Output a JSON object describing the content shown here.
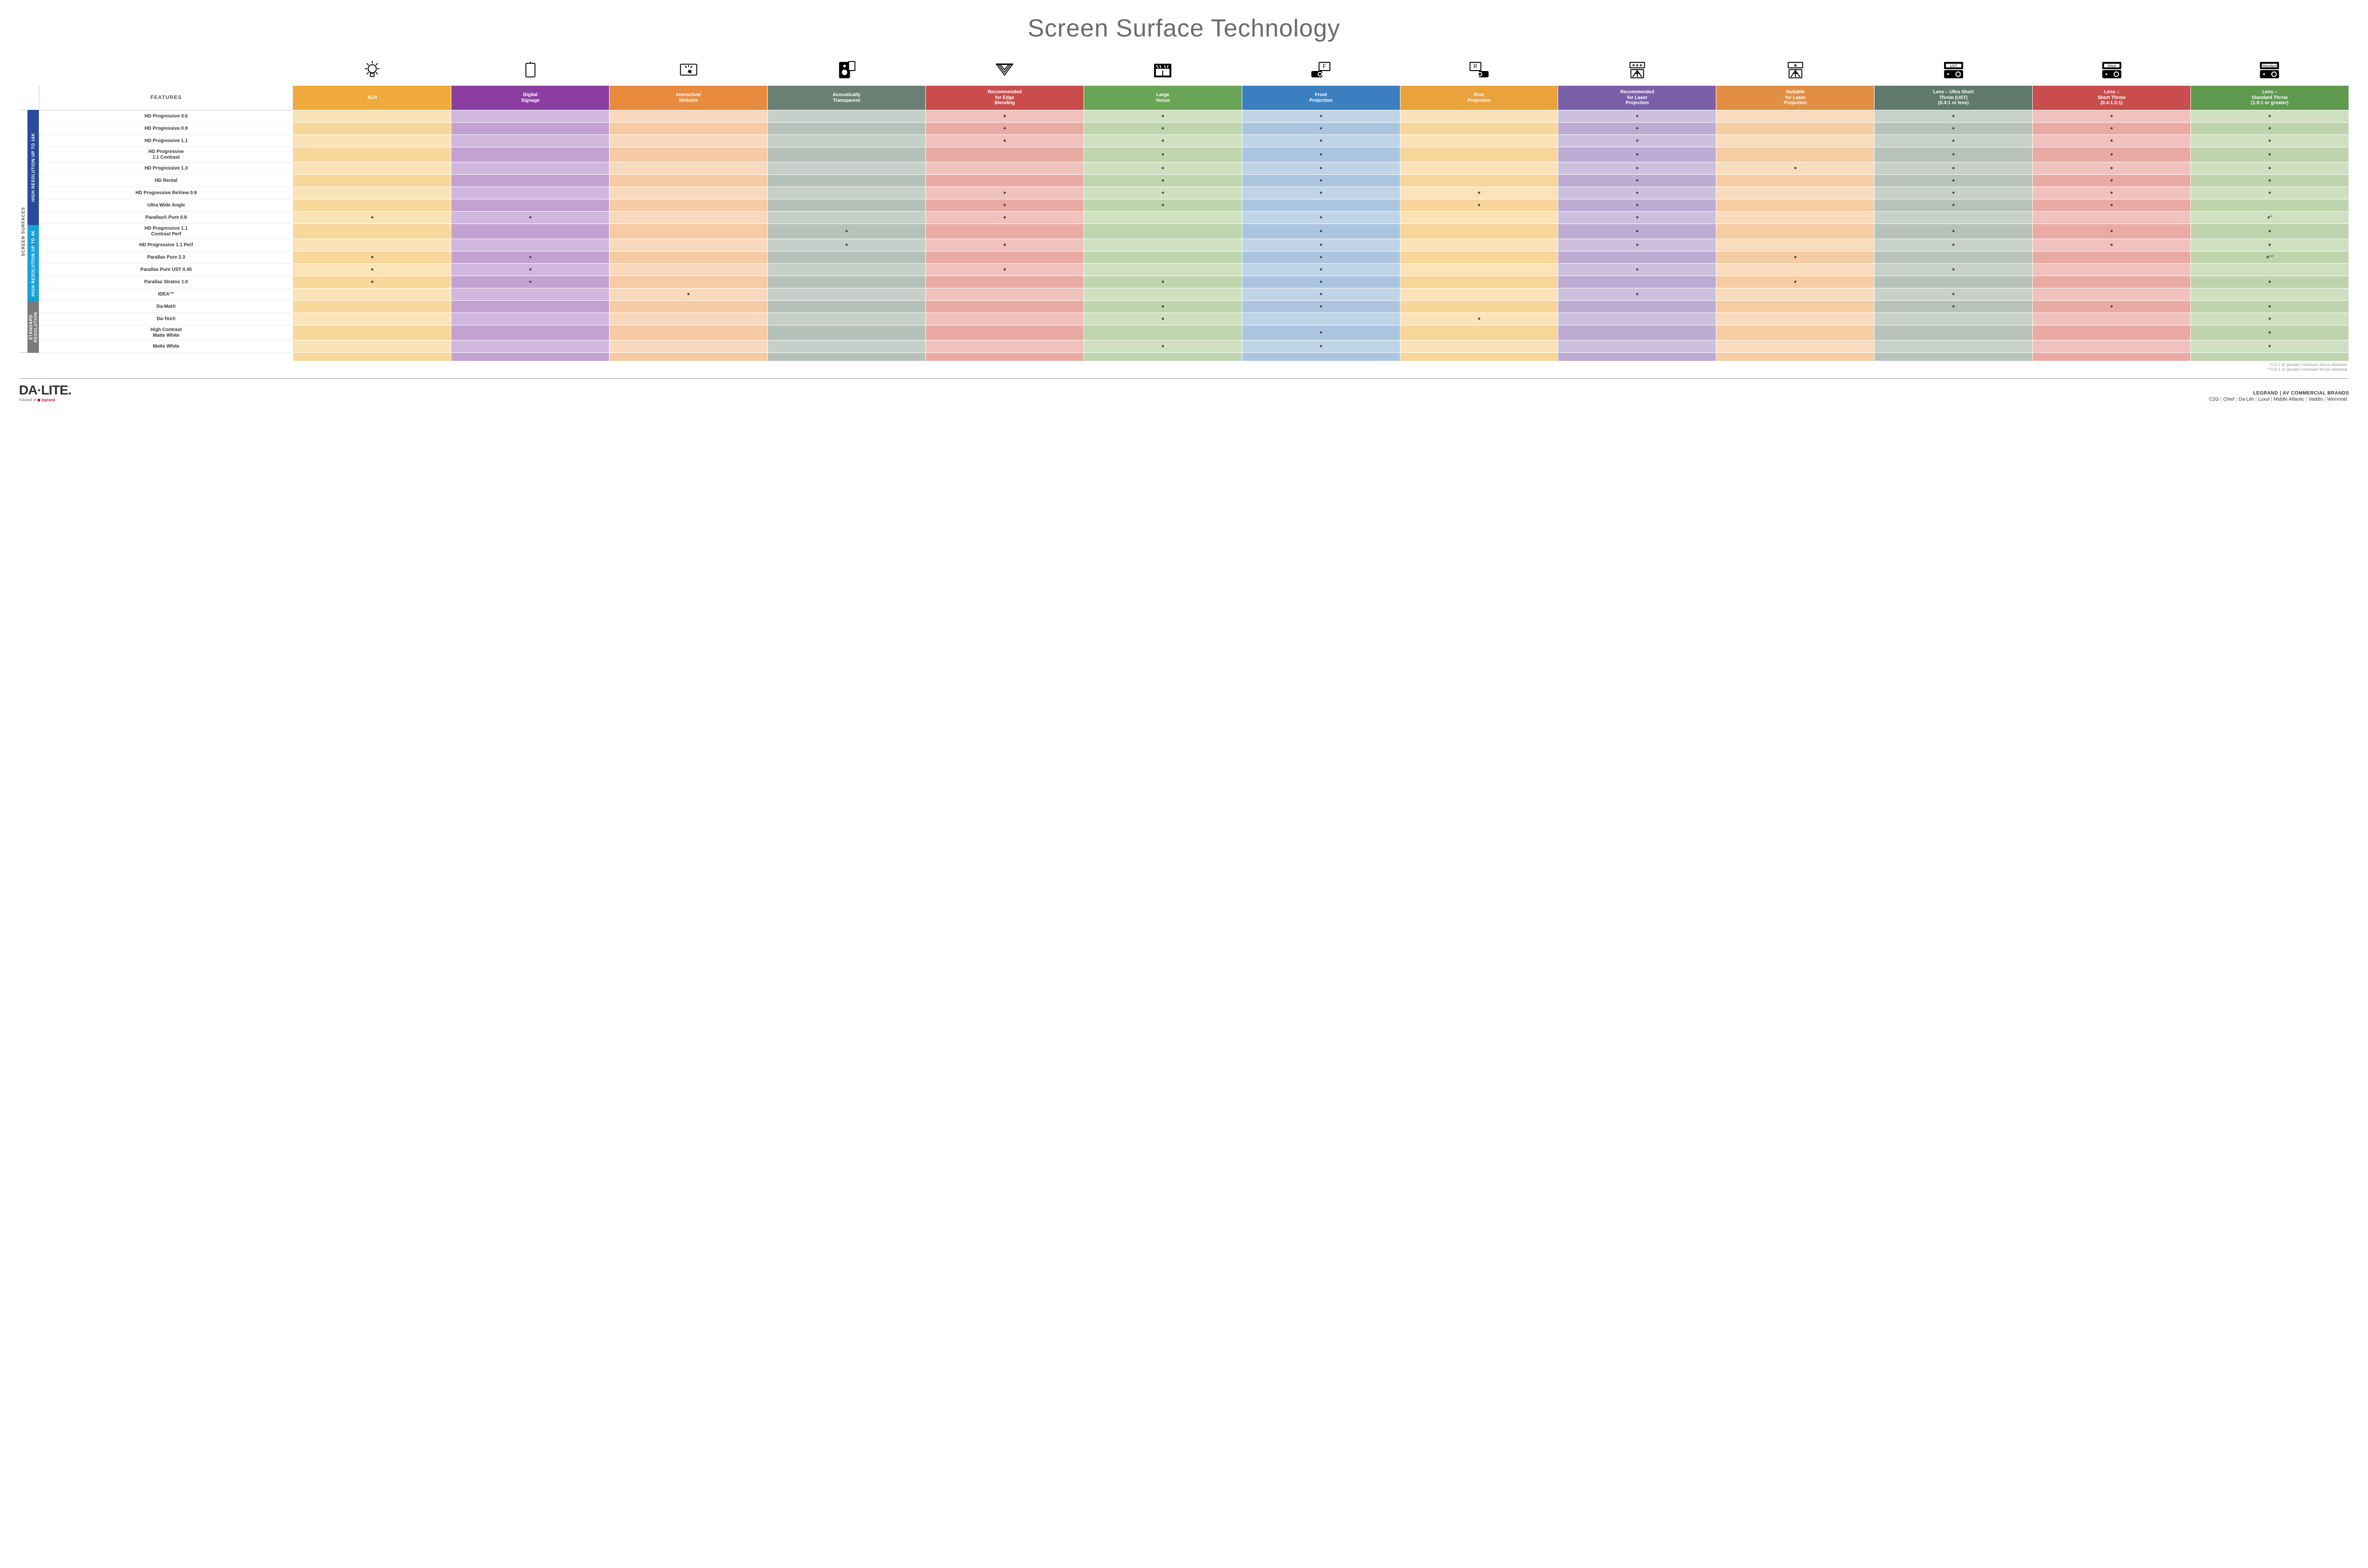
{
  "title": "Screen Surface Technology",
  "colors": {
    "group_16k": "#2a4a9b",
    "group_4k": "#1aa0d8",
    "group_std": "#7a7a7a",
    "dot": "#4a4a4a"
  },
  "columns": [
    {
      "key": "feat",
      "label": "FEATURES",
      "bg": "#ffffff",
      "icon": null
    },
    {
      "key": "alr",
      "label": "ALR",
      "bg": "#f0a93c",
      "icon": "bulb"
    },
    {
      "key": "signage",
      "label": "Digital\nSignage",
      "bg": "#8a3fa0",
      "icon": "sign"
    },
    {
      "key": "interactive",
      "label": "Interactive/\nWritable",
      "bg": "#e98b3e",
      "icon": "touch"
    },
    {
      "key": "acoustic",
      "label": "Acoustically\nTransparent",
      "bg": "#6b8075",
      "icon": "speaker"
    },
    {
      "key": "edge",
      "label": "Recommended\nfor Edge\nBlending",
      "bg": "#c94d4d",
      "icon": "blend"
    },
    {
      "key": "venue",
      "label": "Large\nVenue",
      "bg": "#6aa557",
      "icon": "venue"
    },
    {
      "key": "front",
      "label": "Front\nProjection",
      "bg": "#3b7fbf",
      "icon": "front"
    },
    {
      "key": "rear",
      "label": "Rear\nProjection",
      "bg": "#e9a23c",
      "icon": "rear"
    },
    {
      "key": "reclaser",
      "label": "Recommended\nfor Laser\nProjection",
      "bg": "#7a5fa8",
      "icon": "laser_rec"
    },
    {
      "key": "suitlaser",
      "label": "Suitable\nfor Laser\nProjection",
      "bg": "#e28f43",
      "icon": "laser_suit"
    },
    {
      "key": "ust",
      "label": "Lens – Ultra Short\nThrow (UST)\n(0.4:1 or less)",
      "bg": "#5f7a6a",
      "icon": "proj_ust",
      "badge": "UST"
    },
    {
      "key": "short",
      "label": "Lens –\nShort Throw\n(0.4-1.0:1)",
      "bg": "#c94d4d",
      "icon": "proj_short",
      "badge": "Short"
    },
    {
      "key": "std",
      "label": "Lens –\nStandard Throw\n(1.0:1 or greater)",
      "bg": "#5f9a4f",
      "icon": "proj_std",
      "badge": "Standard"
    }
  ],
  "tints": {
    "alr": [
      "#fbe3b8",
      "#f8d79a"
    ],
    "signage": [
      "#d1b6dd",
      "#c3a1d3"
    ],
    "interactive": [
      "#f9d9bd",
      "#f6cba3"
    ],
    "acoustic": [
      "#c6cfc9",
      "#b6c1ba"
    ],
    "edge": [
      "#f0c1bd",
      "#eaaaa4"
    ],
    "venue": [
      "#cfe0c1",
      "#bfd5ae"
    ],
    "front": [
      "#c0d4e8",
      "#abc5e0"
    ],
    "rear": [
      "#fbe2b8",
      "#f8d599"
    ],
    "reclaser": [
      "#cdc0de",
      "#bdabd3"
    ],
    "suitlaser": [
      "#f9dbbd",
      "#f6cda3"
    ],
    "ust": [
      "#c7d0c9",
      "#b7c3ba"
    ],
    "short": [
      "#f0c1bd",
      "#eaaaa4"
    ],
    "std": [
      "#cfe0c1",
      "#bed4ac"
    ]
  },
  "side_label": "SCREEN SURFACES",
  "groups": [
    {
      "key": "g16k",
      "label": "HIGH RESOLUTION UP TO 16K",
      "bg": "#2a4a9b",
      "rows": [
        {
          "label": "HD Progressive 0.6",
          "dots": {
            "edge": 1,
            "venue": 1,
            "front": 1,
            "reclaser": 1,
            "ust": 1,
            "short": 1,
            "std": 1
          }
        },
        {
          "label": "HD Progressive 0.9",
          "dots": {
            "edge": 1,
            "venue": 1,
            "front": 1,
            "reclaser": 1,
            "ust": 1,
            "short": 1,
            "std": 1
          }
        },
        {
          "label": "HD Progressive 1.1",
          "dots": {
            "edge": 1,
            "venue": 1,
            "front": 1,
            "reclaser": 1,
            "ust": 1,
            "short": 1,
            "std": 1
          }
        },
        {
          "label": "HD Progressive\n1.1 Contrast",
          "dots": {
            "venue": 1,
            "front": 1,
            "reclaser": 1,
            "ust": 1,
            "short": 1,
            "std": 1
          }
        },
        {
          "label": "HD Progressive 1.3",
          "dots": {
            "venue": 1,
            "front": 1,
            "reclaser": 1,
            "suitlaser": 1,
            "ust": 1,
            "short": 1,
            "std": 1
          }
        },
        {
          "label": "HD Rental",
          "dots": {
            "venue": 1,
            "front": 1,
            "reclaser": 1,
            "ust": 1,
            "short": 1,
            "std": 1
          }
        },
        {
          "label": "HD Progressive ReView 0.9",
          "dots": {
            "edge": 1,
            "venue": 1,
            "front": 1,
            "rear": 1,
            "reclaser": 1,
            "ust": 1,
            "short": 1,
            "std": 1
          }
        },
        {
          "label": "Ultra Wide Angle",
          "dots": {
            "edge": 1,
            "venue": 1,
            "rear": 1,
            "reclaser": 1,
            "ust": 1,
            "short": 1
          }
        },
        {
          "label": "Parallax® Pure 0.8",
          "dots": {
            "alr": 1,
            "signage": 1,
            "edge": 1,
            "front": 1,
            "reclaser": 1,
            "std": "●*"
          }
        }
      ]
    },
    {
      "key": "g4k",
      "label": "HIGH RESOLUTION UP TO 4K",
      "bg": "#1aa0d8",
      "rows": [
        {
          "label": "HD Progressive 1.1\nContrast Perf",
          "dots": {
            "acoustic": 1,
            "front": 1,
            "reclaser": 1,
            "ust": 1,
            "short": 1,
            "std": 1
          }
        },
        {
          "label": "HD Progressive 1.1 Perf",
          "dots": {
            "acoustic": 1,
            "edge": 1,
            "front": 1,
            "reclaser": 1,
            "ust": 1,
            "short": 1,
            "std": 1
          }
        },
        {
          "label": "Parallax Pure 2.3",
          "dots": {
            "alr": 1,
            "signage": 1,
            "front": 1,
            "suitlaser": 1,
            "std": "●**"
          }
        },
        {
          "label": "Parallax Pure UST 0.45",
          "dots": {
            "alr": 1,
            "signage": 1,
            "edge": 1,
            "front": 1,
            "reclaser": 1,
            "ust": 1
          }
        },
        {
          "label": "Parallax Stratos 1.0",
          "dots": {
            "alr": 1,
            "signage": 1,
            "venue": 1,
            "front": 1,
            "suitlaser": 1,
            "std": 1
          }
        },
        {
          "label": "IDEA™",
          "dots": {
            "interactive": 1,
            "front": 1,
            "reclaser": 1,
            "ust": 1
          }
        }
      ]
    },
    {
      "key": "gstd",
      "label": "STANDARD\nRESOLUTION",
      "bg": "#7a7a7a",
      "rows": [
        {
          "label": "Da-Mat®",
          "dots": {
            "venue": 1,
            "front": 1,
            "ust": 1,
            "short": 1,
            "std": 1
          }
        },
        {
          "label": "Da-Tex®",
          "dots": {
            "venue": 1,
            "rear": 1,
            "std": 1
          }
        },
        {
          "label": "High Contrast\nMatte White",
          "dots": {
            "front": 1,
            "std": 1
          }
        },
        {
          "label": "Matte White",
          "dots": {
            "venue": 1,
            "front": 1,
            "std": 1
          }
        }
      ]
    }
  ],
  "footnotes": [
    "*1.5:1 or greater minimum throw distance",
    "**1.8:1 or greater minimum throw distance"
  ],
  "footer": {
    "logo_main": "DA·LITE.",
    "logo_sub_prefix": "A brand of ",
    "logo_sub_brand": "legrand",
    "right_top": "LEGRAND | AV COMMERCIAL BRANDS",
    "brands": [
      "C2G",
      "Chief",
      "Da-Lite",
      "Luxul",
      "Middle Atlantic",
      "Vaddio",
      "Wiremold"
    ]
  }
}
